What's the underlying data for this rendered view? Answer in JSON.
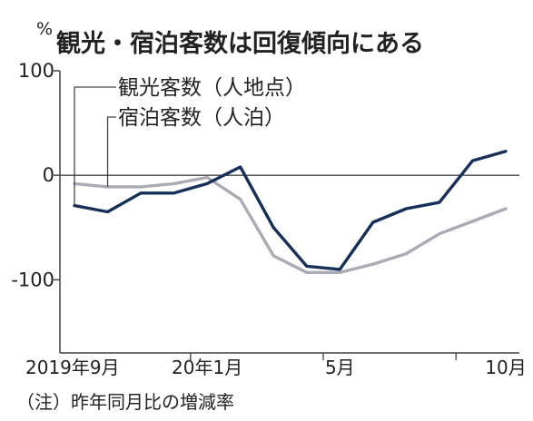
{
  "colors": {
    "series1": "#17305a",
    "series2": "#a9abb5",
    "axis": "#444444",
    "zero": "#444444",
    "bg": "#ffffff"
  },
  "chart_data": {
    "type": "line",
    "title": "観光・宿泊客数は回復傾向にある",
    "ylabel": "%",
    "note": "（注）昨年同月比の増減率",
    "ylim": [
      -170,
      100
    ],
    "yticks": [
      {
        "value": 100,
        "label": "100"
      },
      {
        "value": 0,
        "label": "0"
      },
      {
        "value": -100,
        "label": "-100"
      }
    ],
    "categories": [
      "2019-09",
      "2019-10",
      "2019-11",
      "2019-12",
      "2020-01",
      "2020-02",
      "2020-03",
      "2020-04",
      "2020-05",
      "2020-06",
      "2020-07",
      "2020-08",
      "2020-09",
      "2020-10"
    ],
    "xtick_labels": [
      {
        "index": 0,
        "label": "2019年9月"
      },
      {
        "index": 4,
        "label": "20年1月"
      },
      {
        "index": 8,
        "label": "5月"
      },
      {
        "index": 13,
        "label": "10月"
      }
    ],
    "series": [
      {
        "name": "観光客数（人地点）",
        "values": [
          -29,
          -35,
          -17,
          -17,
          -8,
          8,
          -50,
          -87,
          -90,
          -45,
          -32,
          -26,
          14,
          23
        ]
      },
      {
        "name": "宿泊客数（人泊）",
        "values": [
          -8,
          -11,
          -11,
          -8,
          -2,
          -23,
          -77,
          -93,
          -93,
          -85,
          -75,
          -56,
          -44,
          -32
        ]
      }
    ]
  }
}
